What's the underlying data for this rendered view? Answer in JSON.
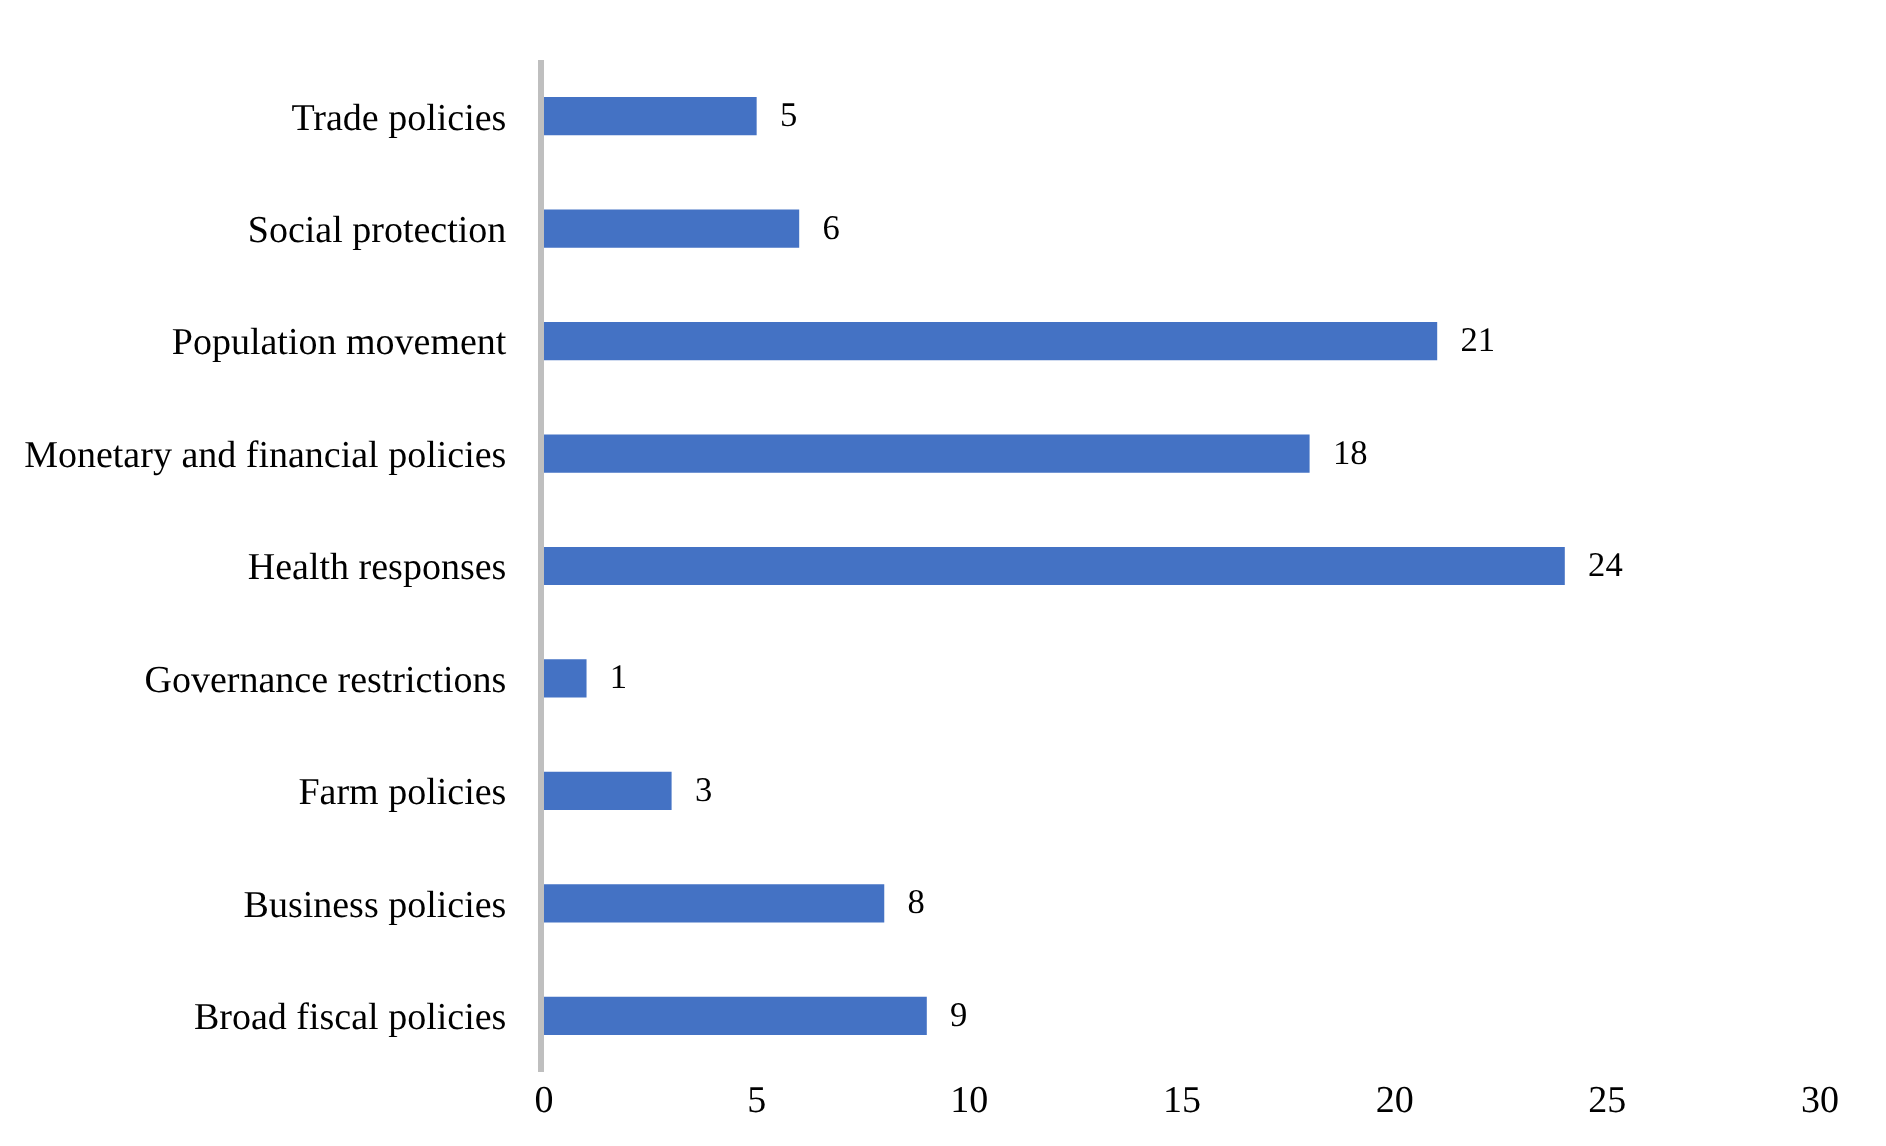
{
  "chart_data": {
    "type": "bar",
    "orientation": "horizontal",
    "categories": [
      "Trade policies",
      "Social protection",
      "Population movement",
      "Monetary and financial policies",
      "Health responses",
      "Governance restrictions",
      "Farm policies",
      "Business policies",
      "Broad fiscal policies"
    ],
    "values": [
      5,
      6,
      21,
      18,
      24,
      1,
      3,
      8,
      9
    ],
    "color": "#4472c4",
    "data_labels": true,
    "xlim": [
      0,
      30
    ],
    "xticks": [
      0,
      5,
      10,
      15,
      20,
      25,
      30
    ]
  }
}
